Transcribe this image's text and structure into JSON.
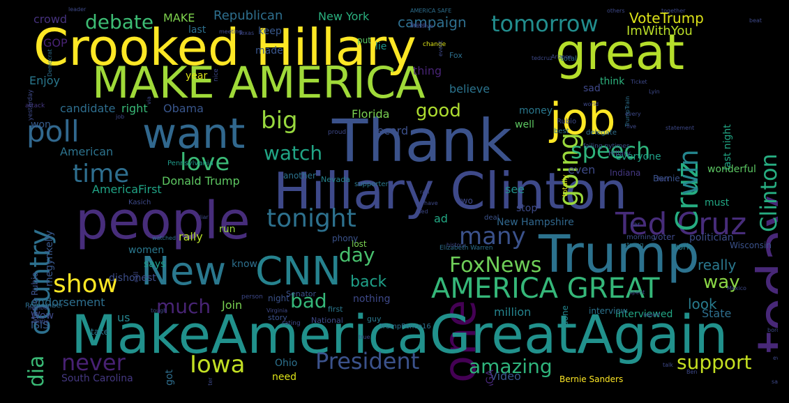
{
  "words": [
    {
      "text": "Crooked Hillary",
      "color": "#fde725",
      "size": 72,
      "rot": false
    },
    {
      "text": "great",
      "color": "#b5de2b",
      "size": 70,
      "rot": false
    },
    {
      "text": "MAKE AMERICA",
      "color": "#a0da39",
      "size": 62,
      "rot": false
    },
    {
      "text": "Thank",
      "color": "#3b528b",
      "size": 84,
      "rot": false
    },
    {
      "text": "job",
      "color": "#fde725",
      "size": 62,
      "rot": false
    },
    {
      "text": "today",
      "color": "#482878",
      "size": 80,
      "rot": true
    },
    {
      "text": "want",
      "color": "#31688e",
      "size": 60,
      "rot": false
    },
    {
      "text": "Hillary Clinton",
      "color": "#3e4989",
      "size": 72,
      "rot": false
    },
    {
      "text": "people",
      "color": "#472d7b",
      "size": 74,
      "rot": false
    },
    {
      "text": "Trump",
      "color": "#2c728e",
      "size": 74,
      "rot": false
    },
    {
      "text": "New",
      "color": "#2a788e",
      "size": 56,
      "rot": false
    },
    {
      "text": "CNN",
      "color": "#26828e",
      "size": 56,
      "rot": false
    },
    {
      "text": "one",
      "color": "#440154",
      "size": 64,
      "rot": true
    },
    {
      "text": "MakeAmericaGreatAgain",
      "color": "#21918c",
      "size": 76,
      "rot": false
    },
    {
      "text": "Ted Cruz",
      "color": "#472c7a",
      "size": 44,
      "rot": false
    },
    {
      "text": "AMERICA GREAT",
      "color": "#35b779",
      "size": 40,
      "rot": false
    },
    {
      "text": "President",
      "color": "#3b528b",
      "size": 32,
      "rot": false
    },
    {
      "text": "poll",
      "color": "#31688e",
      "size": 42,
      "rot": false
    },
    {
      "text": "country",
      "color": "#2d708e",
      "size": 40,
      "rot": true
    },
    {
      "text": "media",
      "color": "#3aba76",
      "size": 30,
      "rot": true
    },
    {
      "text": "Cruz",
      "color": "#26ad81",
      "size": 44,
      "rot": true
    },
    {
      "text": "Clinton",
      "color": "#27ad81",
      "size": 32,
      "rot": true
    },
    {
      "text": "win",
      "color": "#24868e",
      "size": 38,
      "rot": true
    },
    {
      "text": "going",
      "color": "#9bd93c",
      "size": 38,
      "rot": true
    },
    {
      "text": "speech",
      "color": "#2fb47c",
      "size": 32,
      "rot": false
    },
    {
      "text": "tomorrow",
      "color": "#228d8d",
      "size": 32,
      "rot": false
    },
    {
      "text": "debate",
      "color": "#3dbc74",
      "size": 28,
      "rot": false
    },
    {
      "text": "big",
      "color": "#98d83e",
      "size": 34,
      "rot": false
    },
    {
      "text": "time",
      "color": "#2e6e8e",
      "size": 36,
      "rot": false
    },
    {
      "text": "love",
      "color": "#3aba76",
      "size": 34,
      "rot": false
    },
    {
      "text": "watch",
      "color": "#21a585",
      "size": 28,
      "rot": false
    },
    {
      "text": "tonight",
      "color": "#2d718e",
      "size": 36,
      "rot": false
    },
    {
      "text": "many",
      "color": "#3b528b",
      "size": 34,
      "rot": false
    },
    {
      "text": "show",
      "color": "#fde725",
      "size": 36,
      "rot": false
    },
    {
      "text": "FoxNews",
      "color": "#6ece58",
      "size": 30,
      "rot": false
    },
    {
      "text": "Iowa",
      "color": "#c2df23",
      "size": 34,
      "rot": false
    },
    {
      "text": "never",
      "color": "#482173",
      "size": 32,
      "rot": false
    },
    {
      "text": "amazing",
      "color": "#2fb47c",
      "size": 28,
      "rot": false
    },
    {
      "text": "support",
      "color": "#c5e021",
      "size": 28,
      "rot": false
    },
    {
      "text": "good",
      "color": "#addc30",
      "size": 26,
      "rot": false
    },
    {
      "text": "bad",
      "color": "#35b779",
      "size": 28,
      "rot": false
    },
    {
      "text": "much",
      "color": "#482475",
      "size": 28,
      "rot": false
    },
    {
      "text": "day",
      "color": "#48c16e",
      "size": 28,
      "rot": false
    },
    {
      "text": "way",
      "color": "#8bd646",
      "size": 26,
      "rot": false
    },
    {
      "text": "really",
      "color": "#2a788e",
      "size": 20,
      "rot": false
    },
    {
      "text": "back",
      "color": "#1fa088",
      "size": 22,
      "rot": false
    },
    {
      "text": "look",
      "color": "#287c8e",
      "size": 20,
      "rot": false
    },
    {
      "text": "VoteTrump",
      "color": "#dde318",
      "size": 20,
      "rot": false
    },
    {
      "text": "ImWithYou",
      "color": "#bade28",
      "size": 18,
      "rot": false
    },
    {
      "text": "campaign",
      "color": "#2e6f8e",
      "size": 20,
      "rot": false
    },
    {
      "text": "MAKE",
      "color": "#7fd34e",
      "size": 16,
      "rot": false
    },
    {
      "text": "Republican",
      "color": "#2e6f8e",
      "size": 18,
      "rot": false
    },
    {
      "text": "New York",
      "color": "#2ab07f",
      "size": 16,
      "rot": false
    },
    {
      "text": "crowd",
      "color": "#46327e",
      "size": 16,
      "rot": false
    },
    {
      "text": "GOP",
      "color": "#482374",
      "size": 16,
      "rot": false
    },
    {
      "text": "last",
      "color": "#2d708e",
      "size": 14,
      "rot": false
    },
    {
      "text": "keep",
      "color": "#38588c",
      "size": 14,
      "rot": false
    },
    {
      "text": "made",
      "color": "#39568c",
      "size": 14,
      "rot": false
    },
    {
      "text": "put",
      "color": "#5ec962",
      "size": 12,
      "rot": false
    },
    {
      "text": "lie",
      "color": "#1f988b",
      "size": 14,
      "rot": false
    },
    {
      "text": "Fox",
      "color": "#2d708e",
      "size": 11,
      "rot": false
    },
    {
      "text": "thing",
      "color": "#482475",
      "size": 16,
      "rot": false
    },
    {
      "text": "year",
      "color": "#dde318",
      "size": 14,
      "rot": false
    },
    {
      "text": "believe",
      "color": "#2b748e",
      "size": 16,
      "rot": false
    },
    {
      "text": "Enjoy",
      "color": "#2a788e",
      "size": 16,
      "rot": false
    },
    {
      "text": "candidate",
      "color": "#2e6e8e",
      "size": 16,
      "rot": false
    },
    {
      "text": "right",
      "color": "#38b977",
      "size": 16,
      "rot": false
    },
    {
      "text": "Obama",
      "color": "#39568c",
      "size": 16,
      "rot": false
    },
    {
      "text": "won",
      "color": "#365c8d",
      "size": 14,
      "rot": false
    },
    {
      "text": "American",
      "color": "#2c738e",
      "size": 16,
      "rot": false
    },
    {
      "text": "Florida",
      "color": "#7ad151",
      "size": 16,
      "rot": false
    },
    {
      "text": "record",
      "color": "#3c508b",
      "size": 16,
      "rot": false
    },
    {
      "text": "money",
      "color": "#2a788e",
      "size": 14,
      "rot": false
    },
    {
      "text": "well",
      "color": "#5ec962",
      "size": 14,
      "rot": false
    },
    {
      "text": "sad",
      "color": "#3f4889",
      "size": 14,
      "rot": false
    },
    {
      "text": "think",
      "color": "#2db27d",
      "size": 14,
      "rot": false
    },
    {
      "text": "even",
      "color": "#3e4a89",
      "size": 16,
      "rot": false
    },
    {
      "text": "everyone",
      "color": "#1fa188",
      "size": 14,
      "rot": false
    },
    {
      "text": "last night",
      "color": "#22a785",
      "size": 14,
      "rot": true
    },
    {
      "text": "wonderful",
      "color": "#5cc863",
      "size": 14,
      "rot": false
    },
    {
      "text": "Donald Trump",
      "color": "#5ec962",
      "size": 16,
      "rot": false
    },
    {
      "text": "AmericaFirst",
      "color": "#20a486",
      "size": 16,
      "rot": false
    },
    {
      "text": "see",
      "color": "#21918c",
      "size": 16,
      "rot": false
    },
    {
      "text": "stop",
      "color": "#3e4a89",
      "size": 14,
      "rot": false
    },
    {
      "text": "Indiana",
      "color": "#453882",
      "size": 12,
      "rot": false
    },
    {
      "text": "Bernie",
      "color": "#3b528b",
      "size": 12,
      "rot": false
    },
    {
      "text": "must",
      "color": "#22a884",
      "size": 14,
      "rot": false
    },
    {
      "text": "politician",
      "color": "#3d4d8a",
      "size": 14,
      "rot": false
    },
    {
      "text": "Wisconsin",
      "color": "#3b528b",
      "size": 12,
      "rot": false
    },
    {
      "text": "New Hampshire",
      "color": "#31688e",
      "size": 14,
      "rot": false
    },
    {
      "text": "ad",
      "color": "#22a884",
      "size": 16,
      "rot": false
    },
    {
      "text": "know",
      "color": "#2d708e",
      "size": 14,
      "rot": false
    },
    {
      "text": "women",
      "color": "#2a788e",
      "size": 14,
      "rot": false
    },
    {
      "text": "says",
      "color": "#1f9e89",
      "size": 14,
      "rot": false
    },
    {
      "text": "dishonest",
      "color": "#3d4e8a",
      "size": 14,
      "rot": false
    },
    {
      "text": "rally",
      "color": "#b5de2b",
      "size": 16,
      "rot": false
    },
    {
      "text": "run",
      "color": "#98d83e",
      "size": 14,
      "rot": false
    },
    {
      "text": "endorsement",
      "color": "#2e6f8e",
      "size": 16,
      "rot": false
    },
    {
      "text": "Join",
      "color": "#7ad151",
      "size": 16,
      "rot": false
    },
    {
      "text": "million",
      "color": "#25848e",
      "size": 16,
      "rot": false
    },
    {
      "text": "interviewed",
      "color": "#22a785",
      "size": 14,
      "rot": false
    },
    {
      "text": "State",
      "color": "#2e6f8e",
      "size": 16,
      "rot": false
    },
    {
      "text": "Wow",
      "color": "#3e4989",
      "size": 14,
      "rot": false
    },
    {
      "text": "us",
      "color": "#25848e",
      "size": 16,
      "rot": false
    },
    {
      "text": "ISIS",
      "color": "#365c8d",
      "size": 14,
      "rot": false
    },
    {
      "text": "take",
      "color": "#2a788e",
      "size": 12,
      "rot": false
    },
    {
      "text": "Ohio",
      "color": "#2d718e",
      "size": 14,
      "rot": false
    },
    {
      "text": "need",
      "color": "#dde318",
      "size": 14,
      "rot": false
    },
    {
      "text": "Video",
      "color": "#39568c",
      "size": 16,
      "rot": false
    },
    {
      "text": "South Carolina",
      "color": "#453882",
      "size": 14,
      "rot": false
    },
    {
      "text": "Bernie Sanders",
      "color": "#fde725",
      "size": 12,
      "rot": false
    },
    {
      "text": "megynkelly",
      "color": "#38588c",
      "size": 14,
      "rot": true
    },
    {
      "text": "Marco Rubio",
      "color": "#3b518b",
      "size": 12,
      "rot": true
    },
    {
      "text": "MAGA",
      "color": "#482878",
      "size": 14,
      "rot": true
    },
    {
      "text": "got",
      "color": "#2e6e8e",
      "size": 14,
      "rot": true
    },
    {
      "text": "lost",
      "color": "#7ad151",
      "size": 12,
      "rot": false
    },
    {
      "text": "nothing",
      "color": "#3e4989",
      "size": 14,
      "rot": false
    },
    {
      "text": "night",
      "color": "#3b528b",
      "size": 12,
      "rot": false
    },
    {
      "text": "first",
      "color": "#2a788e",
      "size": 11,
      "rot": false
    },
    {
      "text": "voter",
      "color": "#3e4989",
      "size": 12,
      "rot": false
    },
    {
      "text": "work",
      "color": "#26828e",
      "size": 12,
      "rot": false
    },
    {
      "text": "done",
      "color": "#24868e",
      "size": 12,
      "rot": true
    },
    {
      "text": "interview",
      "color": "#2c738e",
      "size": 12,
      "rot": false
    },
    {
      "text": "Senator",
      "color": "#3b528b",
      "size": 11,
      "rot": false
    },
    {
      "text": "story",
      "color": "#3b528b",
      "size": 11,
      "rot": false
    },
    {
      "text": "guy",
      "color": "#2a788e",
      "size": 11,
      "rot": false
    },
    {
      "text": "TrumpPence16",
      "color": "#2d708e",
      "size": 10,
      "rot": false
    },
    {
      "text": "National",
      "color": "#3e4a89",
      "size": 11,
      "rot": false
    },
    {
      "text": "Remember",
      "color": "#2e6e8e",
      "size": 10,
      "rot": false
    },
    {
      "text": "Pennsylvania",
      "color": "#1f9a8a",
      "size": 10,
      "rot": false
    },
    {
      "text": "Nevada",
      "color": "#25838e",
      "size": 11,
      "rot": false
    },
    {
      "text": "another",
      "color": "#2c728e",
      "size": 12,
      "rot": false
    },
    {
      "text": "Hillary",
      "color": "#3e4a89",
      "size": 10,
      "rot": false
    },
    {
      "text": "totally",
      "color": "#dde318",
      "size": 10,
      "rot": true
    },
    {
      "text": "deal",
      "color": "#3b528b",
      "size": 10,
      "rot": false
    },
    {
      "text": "supporter",
      "color": "#2a788e",
      "size": 10,
      "rot": false
    },
    {
      "text": "Kasich",
      "color": "#3e4a89",
      "size": 10,
      "rot": false
    },
    {
      "text": "Rubio",
      "color": "#3e4989",
      "size": 10,
      "rot": false
    },
    {
      "text": "best",
      "color": "#2c728e",
      "size": 10,
      "rot": false
    },
    {
      "text": "delegate",
      "color": "#2e6f8e",
      "size": 10,
      "rot": false
    },
    {
      "text": "failing nytimes",
      "color": "#3b518b",
      "size": 9,
      "rot": false
    },
    {
      "text": "fact",
      "color": "#3e4989",
      "size": 9,
      "rot": false
    },
    {
      "text": "far",
      "color": "#3e4989",
      "size": 10,
      "rot": false
    },
    {
      "text": "strong",
      "color": "#2a788e",
      "size": 9,
      "rot": false
    },
    {
      "text": "morning",
      "color": "#3d4e8a",
      "size": 10,
      "rot": false
    },
    {
      "text": "Elizabeth Warren",
      "color": "#2d708e",
      "size": 9,
      "rot": false
    },
    {
      "text": "history",
      "color": "#3e4989",
      "size": 8,
      "rot": false
    },
    {
      "text": "watched",
      "color": "#2d708e",
      "size": 8,
      "rot": false
    },
    {
      "text": "call",
      "color": "#3e4989",
      "size": 9,
      "rot": true
    },
    {
      "text": "phony",
      "color": "#3b528b",
      "size": 12,
      "rot": false
    },
    {
      "text": "two",
      "color": "#3e4989",
      "size": 12,
      "rot": false
    },
    {
      "text": "attack",
      "color": "#453882",
      "size": 9,
      "rot": false
    },
    {
      "text": "yesterday",
      "color": "#3e4a89",
      "size": 9,
      "rot": true
    },
    {
      "text": "nice",
      "color": "#3e4a89",
      "size": 9,
      "rot": true
    },
    {
      "text": "proud",
      "color": "#3e4989",
      "size": 9,
      "rot": false
    },
    {
      "text": "world",
      "color": "#3e4989",
      "size": 8,
      "rot": false
    },
    {
      "text": "change",
      "color": "#dde318",
      "size": 9,
      "rot": false
    },
    {
      "text": "together",
      "color": "#3e4989",
      "size": 8,
      "rot": false
    },
    {
      "text": "AMERICA SAFE",
      "color": "#2e6f8e",
      "size": 8,
      "rot": false
    },
    {
      "text": "meeting",
      "color": "#3e4989",
      "size": 8,
      "rot": false
    },
    {
      "text": "Texas",
      "color": "#3e4989",
      "size": 8,
      "rot": false
    },
    {
      "text": "total",
      "color": "#2e6f8e",
      "size": 10,
      "rot": false
    },
    {
      "text": "others",
      "color": "#3e4989",
      "size": 8,
      "rot": false
    },
    {
      "text": "massive",
      "color": "#3e4989",
      "size": 8,
      "rot": false
    },
    {
      "text": "tedcruz",
      "color": "#3e4989",
      "size": 8,
      "rot": false
    },
    {
      "text": "Arizona",
      "color": "#3e4989",
      "size": 8,
      "rot": false
    },
    {
      "text": "TrumpTrain",
      "color": "#2d708e",
      "size": 8,
      "rot": true
    },
    {
      "text": "Ticket",
      "color": "#3e4989",
      "size": 8,
      "rot": false
    },
    {
      "text": "Lyin",
      "color": "#3e4989",
      "size": 8,
      "rot": false
    },
    {
      "text": "Democrat",
      "color": "#2e6f8e",
      "size": 8,
      "rot": true
    },
    {
      "text": "leader",
      "color": "#3e4989",
      "size": 8,
      "rot": false
    },
    {
      "text": "failed",
      "color": "#3e4989",
      "size": 8,
      "rot": false
    },
    {
      "text": "event",
      "color": "#3e4989",
      "size": 8,
      "rot": true
    },
    {
      "text": "beat",
      "color": "#3e4989",
      "size": 8,
      "rot": false
    },
    {
      "text": "every",
      "color": "#3e4989",
      "size": 8,
      "rot": false
    },
    {
      "text": "statement",
      "color": "#3e4989",
      "size": 8,
      "rot": false
    },
    {
      "text": "border",
      "color": "#3e4989",
      "size": 8,
      "rot": false
    },
    {
      "text": "Mexico",
      "color": "#3e4989",
      "size": 8,
      "rot": false
    },
    {
      "text": "report",
      "color": "#3e4989",
      "size": 8,
      "rot": false
    },
    {
      "text": "spent",
      "color": "#3e4989",
      "size": 8,
      "rot": false
    },
    {
      "text": "number",
      "color": "#3e4989",
      "size": 8,
      "rot": false
    },
    {
      "text": "little",
      "color": "#3e4989",
      "size": 8,
      "rot": false
    },
    {
      "text": "tough",
      "color": "#3e4989",
      "size": 8,
      "rot": false
    },
    {
      "text": "person",
      "color": "#3e4989",
      "size": 9,
      "rot": false
    },
    {
      "text": "Virginia",
      "color": "#3e4989",
      "size": 8,
      "rot": false
    },
    {
      "text": "rating",
      "color": "#3e4989",
      "size": 9,
      "rot": false
    },
    {
      "text": "talk",
      "color": "#3e4989",
      "size": 8,
      "rot": false
    },
    {
      "text": "Ben",
      "color": "#3e4989",
      "size": 8,
      "rot": false
    },
    {
      "text": "evening",
      "color": "#3e4989",
      "size": 8,
      "rot": false
    },
    {
      "text": "saying",
      "color": "#3e4989",
      "size": 8,
      "rot": false
    },
    {
      "text": "better",
      "color": "#3e4989",
      "size": 8,
      "rot": true
    },
    {
      "text": "true",
      "color": "#3e4989",
      "size": 8,
      "rot": false
    },
    {
      "text": "job",
      "color": "#3e4989",
      "size": 8,
      "rot": false
    },
    {
      "text": "live",
      "color": "#3e4989",
      "size": 8,
      "rot": false
    },
    {
      "text": "ran",
      "color": "#3e4989",
      "size": 8,
      "rot": false
    },
    {
      "text": "liar",
      "color": "#3e4989",
      "size": 8,
      "rot": false
    },
    {
      "text": "Ted",
      "color": "#3e4989",
      "size": 8,
      "rot": false
    },
    {
      "text": "via",
      "color": "#3e4989",
      "size": 8,
      "rot": true
    },
    {
      "text": "have",
      "color": "#3e4989",
      "size": 8,
      "rot": false
    }
  ]
}
